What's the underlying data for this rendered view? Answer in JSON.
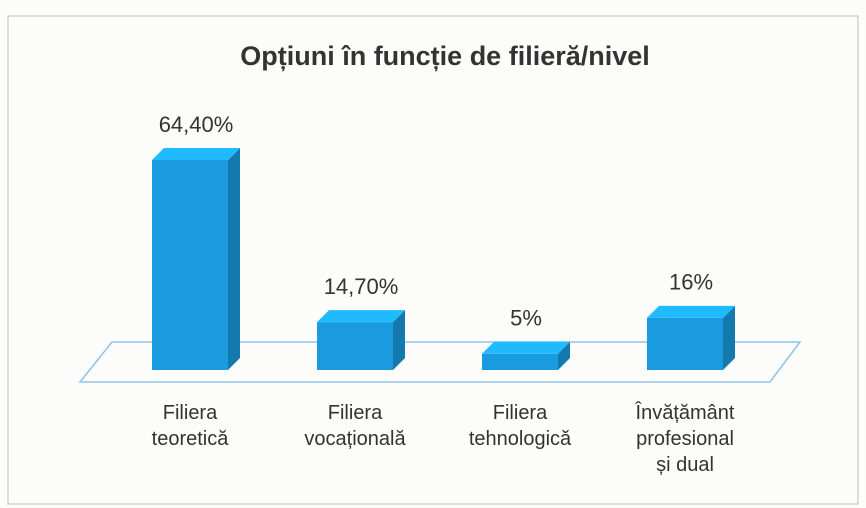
{
  "chart_data": {
    "type": "bar3d",
    "title": "Opțiuni în funcție de filieră/nivel",
    "categories": [
      "Filiera\nteoretică",
      "Filiera\nvocațională",
      "Filiera\ntehnologică",
      "Învățământ\nprofesional\nși dual"
    ],
    "values": [
      64.4,
      14.7,
      5,
      16
    ],
    "value_labels": [
      "64,40%",
      "14,70%",
      "5%",
      "16%"
    ],
    "color": "#1a9be0"
  }
}
